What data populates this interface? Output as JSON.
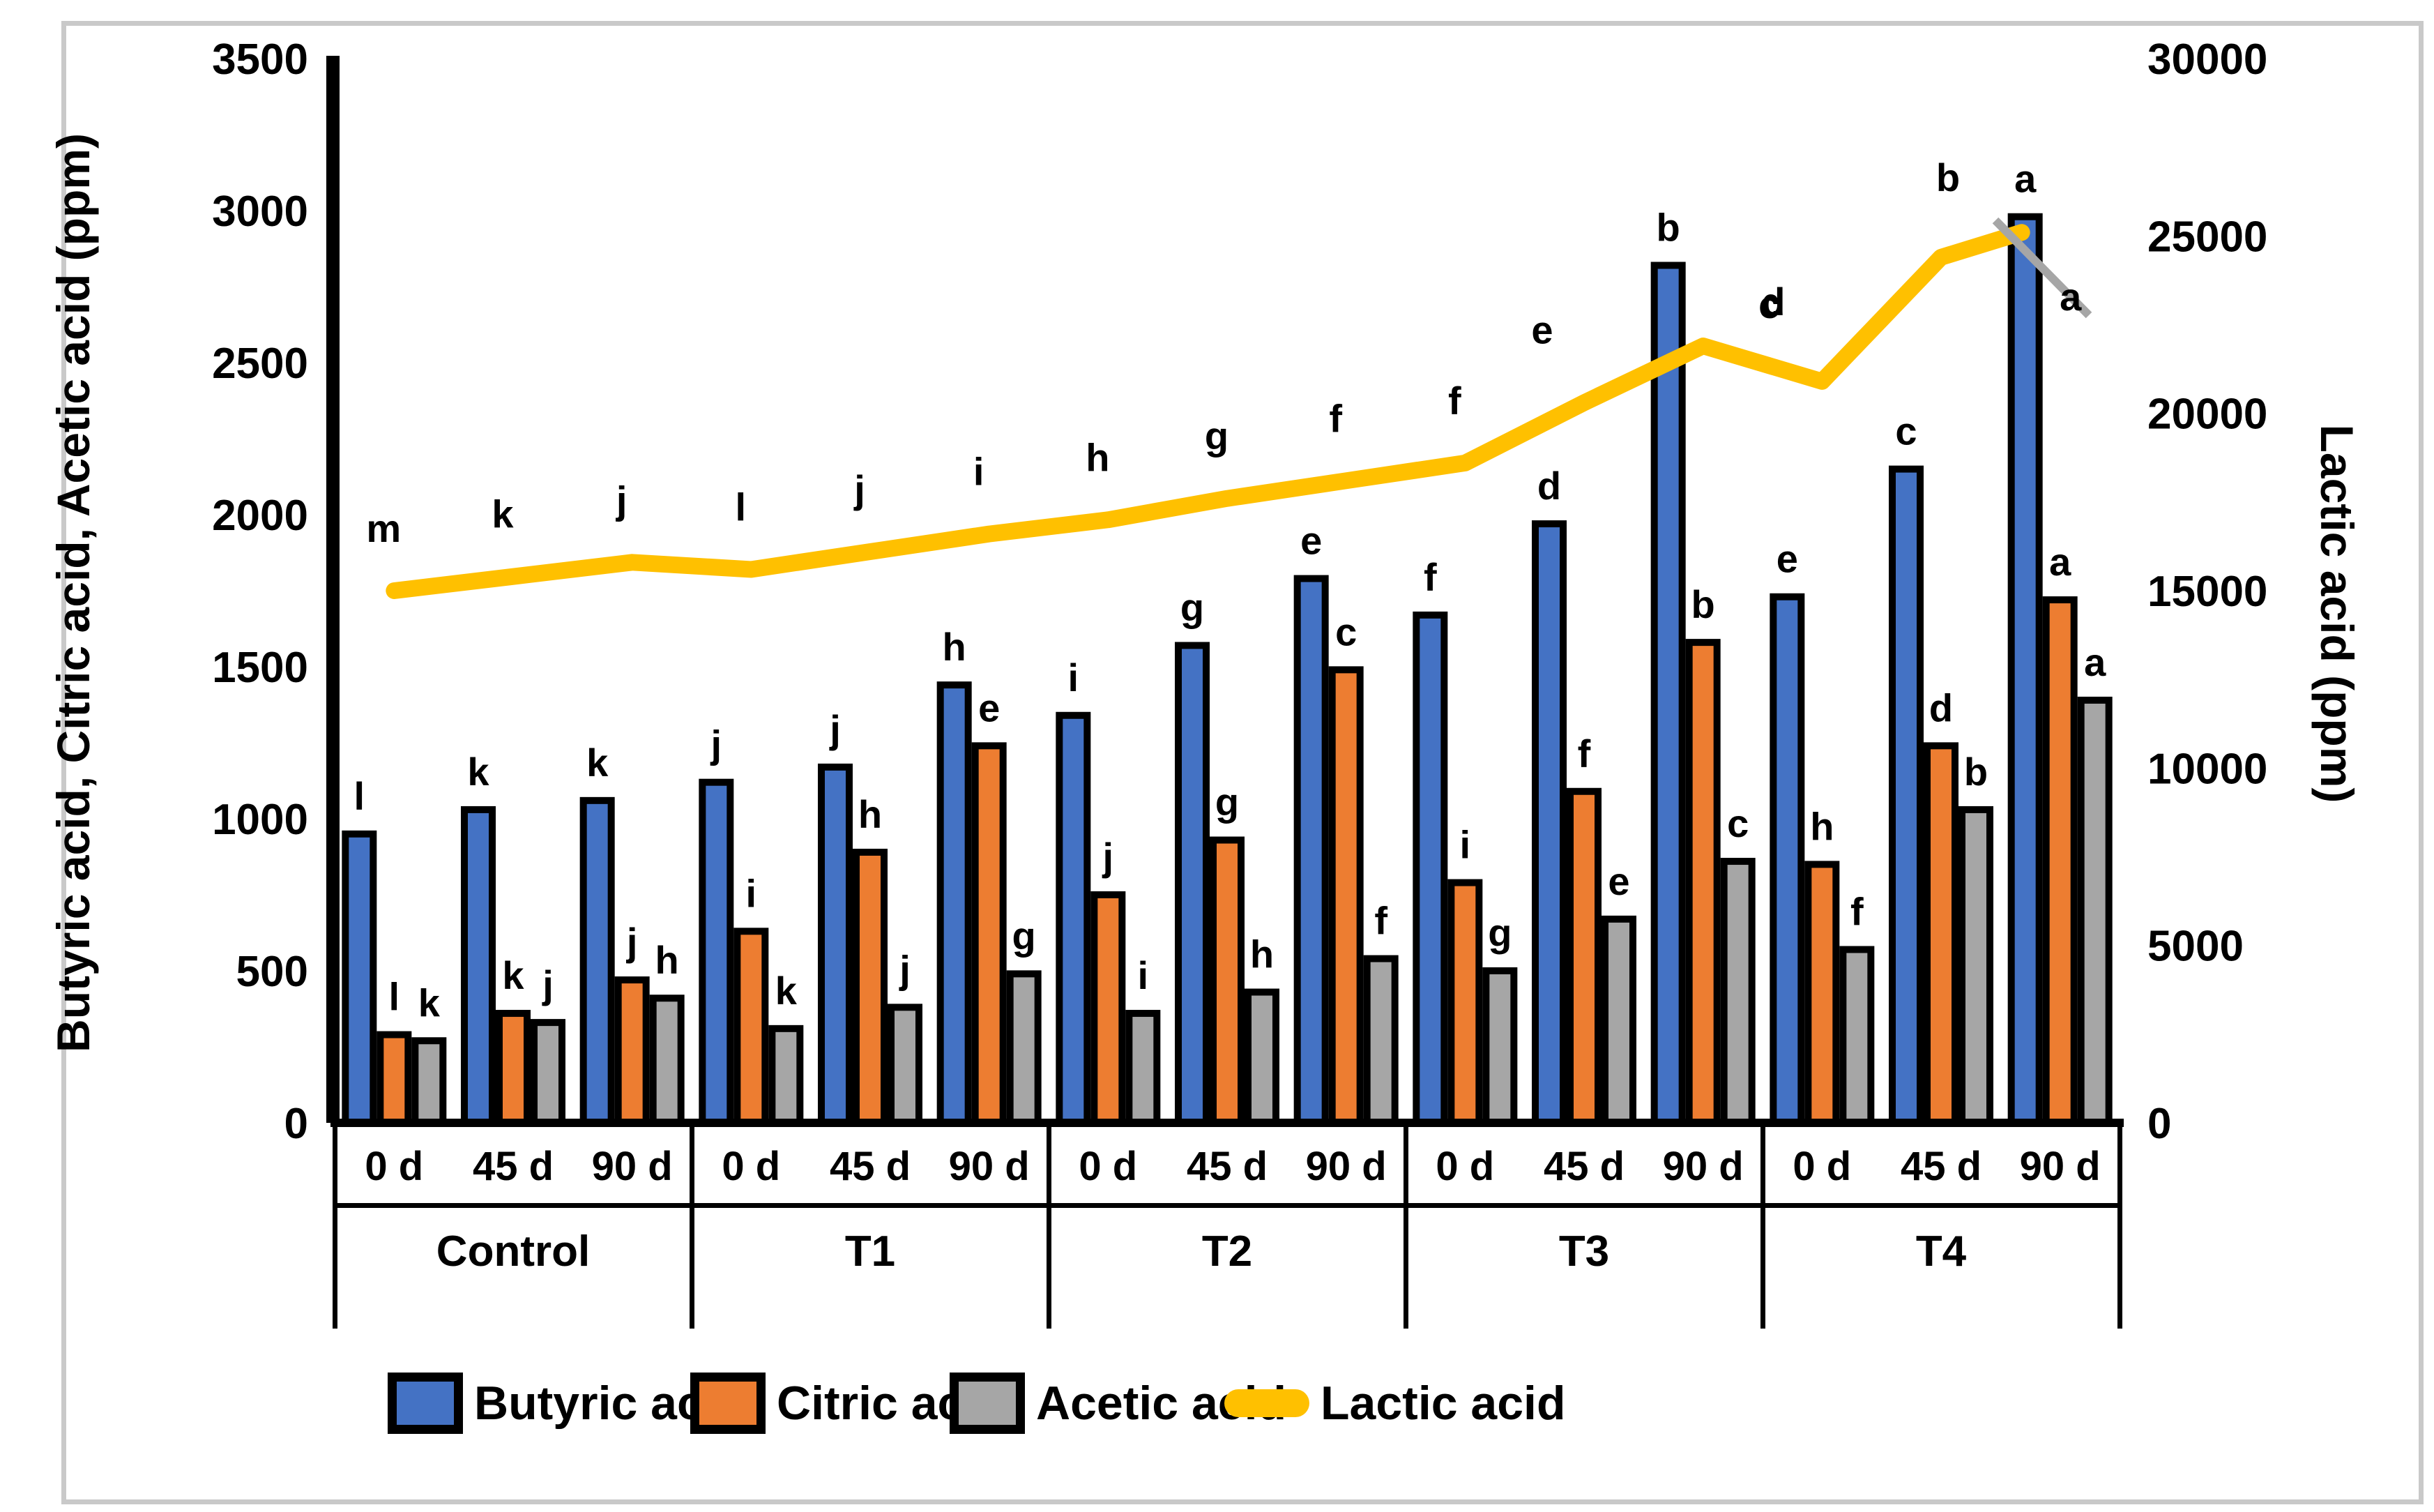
{
  "chart_data": {
    "type": "bar",
    "subtype": "grouped-bars-with-secondary-line",
    "left_axis": {
      "label": "Butyric acid, Citric acid, Acetic acid (ppm)",
      "min": 0,
      "max": 3500,
      "ticks": [
        0,
        500,
        1000,
        1500,
        2000,
        2500,
        3000,
        3500
      ]
    },
    "right_axis": {
      "label": "Lactic acid (ppm)",
      "min": 0,
      "max": 30000,
      "ticks": [
        0,
        5000,
        10000,
        15000,
        20000,
        25000,
        30000
      ]
    },
    "groups": [
      "Control",
      "T1",
      "T2",
      "T3",
      "T4"
    ],
    "days": [
      "0 d",
      "45 d",
      "90 d"
    ],
    "series": [
      {
        "name": "Butyric acid",
        "color": "#4472C4",
        "values": [
          [
            950,
            1030,
            1060
          ],
          [
            1120,
            1170,
            1440
          ],
          [
            1340,
            1570,
            1790
          ],
          [
            1670,
            1970,
            2820
          ],
          [
            1730,
            2150,
            2980
          ]
        ],
        "letters": [
          [
            "l",
            "k",
            "k"
          ],
          [
            "j",
            "j",
            "h"
          ],
          [
            "i",
            "g",
            "e"
          ],
          [
            "f",
            "d",
            "b"
          ],
          [
            "e",
            "c",
            "a"
          ]
        ]
      },
      {
        "name": "Citric acid",
        "color": "#ED7D31",
        "values": [
          [
            290,
            360,
            470
          ],
          [
            630,
            890,
            1240
          ],
          [
            750,
            930,
            1490
          ],
          [
            790,
            1090,
            1580
          ],
          [
            850,
            1240,
            1720
          ]
        ],
        "letters": [
          [
            "l",
            "k",
            "j"
          ],
          [
            "i",
            "h",
            "e"
          ],
          [
            "j",
            "g",
            "c"
          ],
          [
            "i",
            "f",
            "b"
          ],
          [
            "h",
            "d",
            "a"
          ]
        ]
      },
      {
        "name": "Acetic acid",
        "color": "#A6A6A6",
        "values": [
          [
            270,
            330,
            410
          ],
          [
            310,
            380,
            490
          ],
          [
            360,
            430,
            540
          ],
          [
            500,
            670,
            860
          ],
          [
            570,
            1030,
            1390
          ]
        ],
        "letters": [
          [
            "k",
            "j",
            "h"
          ],
          [
            "k",
            "j",
            "g"
          ],
          [
            "i",
            "h",
            "f"
          ],
          [
            "g",
            "e",
            "c"
          ],
          [
            "f",
            "b",
            "a"
          ]
        ]
      }
    ],
    "line": {
      "name": "Lactic acid",
      "color": "#FFC000",
      "values": [
        [
          15000,
          15400,
          15800
        ],
        [
          15600,
          16100,
          16600
        ],
        [
          17000,
          17600,
          18100
        ],
        [
          18600,
          20300,
          21900
        ],
        [
          20900,
          24400,
          25100
        ]
      ],
      "letters": [
        [
          "m",
          "k",
          "j"
        ],
        [
          "l",
          "j",
          "i"
        ],
        [
          "h",
          "g",
          "f"
        ],
        [
          "f",
          "e",
          "c"
        ],
        [
          "d",
          "b",
          "a"
        ]
      ]
    },
    "bar_border_color": "#000000",
    "annotation_slash_color": "#A6A6A6",
    "frame_border_color": "#C9C9C9",
    "legend_position": "bottom"
  }
}
